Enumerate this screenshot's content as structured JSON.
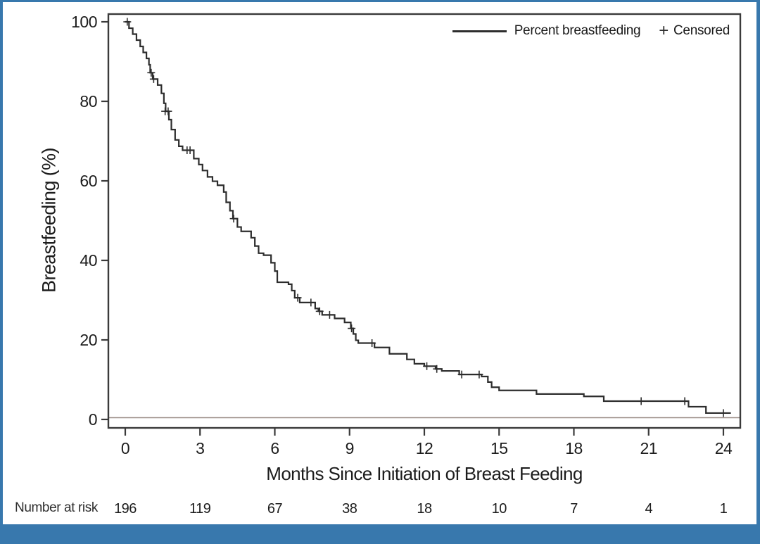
{
  "colors": {
    "accent_blue": "#3878ad",
    "curve": "#2d2d2d",
    "frame": "#3a3a3a",
    "zero_line": "#9b8e88",
    "text": "#1c1c1c"
  },
  "chart_data": {
    "type": "line",
    "subtype": "kaplan-meier-step",
    "title": "",
    "xlabel": "Months Since Initiation of Breast Feeding",
    "ylabel": "Breastfeeding (%)",
    "xlim": [
      0,
      24
    ],
    "ylim": [
      0,
      100
    ],
    "x_ticks": [
      0,
      3,
      6,
      9,
      12,
      15,
      18,
      21,
      24
    ],
    "y_ticks": [
      0,
      20,
      40,
      60,
      80,
      100
    ],
    "grid": false,
    "zero_reference_line": true,
    "legend": {
      "position": "top-right",
      "series_label": "Percent breastfeeding",
      "censored_label": "Censored",
      "censored_marker": "+"
    },
    "series": [
      {
        "name": "Percent breastfeeding",
        "steps": [
          [
            0,
            100
          ],
          [
            0.15,
            98.4
          ],
          [
            0.3,
            96.9
          ],
          [
            0.45,
            95.4
          ],
          [
            0.6,
            93.8
          ],
          [
            0.72,
            92.3
          ],
          [
            0.85,
            90.8
          ],
          [
            0.95,
            89.2
          ],
          [
            1.0,
            87.2
          ],
          [
            1.1,
            85.6
          ],
          [
            1.3,
            84.1
          ],
          [
            1.45,
            82
          ],
          [
            1.55,
            79.5
          ],
          [
            1.62,
            77.5
          ],
          [
            1.75,
            75.4
          ],
          [
            1.85,
            72.9
          ],
          [
            2,
            70.3
          ],
          [
            2.15,
            68.7
          ],
          [
            2.3,
            67.7
          ],
          [
            2.75,
            65.6
          ],
          [
            2.95,
            64.1
          ],
          [
            3.1,
            62.6
          ],
          [
            3.3,
            61
          ],
          [
            3.5,
            59.9
          ],
          [
            3.7,
            58.9
          ],
          [
            3.95,
            57.2
          ],
          [
            4.05,
            54.6
          ],
          [
            4.2,
            52.5
          ],
          [
            4.32,
            50.5
          ],
          [
            4.5,
            48.4
          ],
          [
            4.65,
            47.3
          ],
          [
            5.05,
            45.7
          ],
          [
            5.2,
            43.6
          ],
          [
            5.35,
            41.8
          ],
          [
            5.55,
            41.3
          ],
          [
            5.85,
            39.4
          ],
          [
            6,
            37.3
          ],
          [
            6.1,
            34.5
          ],
          [
            6.55,
            34
          ],
          [
            6.68,
            32.4
          ],
          [
            6.8,
            30.6
          ],
          [
            7,
            29.4
          ],
          [
            7.62,
            27.9
          ],
          [
            7.75,
            27.2
          ],
          [
            7.9,
            26.3
          ],
          [
            8.4,
            25.4
          ],
          [
            8.8,
            24.4
          ],
          [
            9.05,
            22.9
          ],
          [
            9.15,
            21.5
          ],
          [
            9.25,
            19.9
          ],
          [
            9.35,
            19.2
          ],
          [
            10,
            18.1
          ],
          [
            10.6,
            16.5
          ],
          [
            11.3,
            15.1
          ],
          [
            11.6,
            14
          ],
          [
            12,
            13.4
          ],
          [
            12.45,
            12.7
          ],
          [
            12.7,
            12.2
          ],
          [
            13.4,
            11.3
          ],
          [
            14.3,
            10.8
          ],
          [
            14.55,
            9.4
          ],
          [
            14.7,
            8.1
          ],
          [
            15,
            7.3
          ],
          [
            16.5,
            6.4
          ],
          [
            18.4,
            5.8
          ],
          [
            19.2,
            4.6
          ],
          [
            22.6,
            3.2
          ],
          [
            23.3,
            1.6
          ],
          [
            24.3,
            1.6
          ]
        ]
      }
    ],
    "censored_points": [
      [
        0.08,
        100
      ],
      [
        1.04,
        87.2
      ],
      [
        1.14,
        85.6
      ],
      [
        1.6,
        77.5
      ],
      [
        1.72,
        77.5
      ],
      [
        2.48,
        67.7
      ],
      [
        2.6,
        67.7
      ],
      [
        4.35,
        50.5
      ],
      [
        6.92,
        30.6
      ],
      [
        7.45,
        29.4
      ],
      [
        7.8,
        27.2
      ],
      [
        8.2,
        26.3
      ],
      [
        9.08,
        22.9
      ],
      [
        9.9,
        19.2
      ],
      [
        12.1,
        13.4
      ],
      [
        12.5,
        12.7
      ],
      [
        13.5,
        11.3
      ],
      [
        14.2,
        11.3
      ],
      [
        20.7,
        4.6
      ],
      [
        22.45,
        4.6
      ],
      [
        24,
        1.6
      ]
    ],
    "number_at_risk": {
      "label": "Number at risk",
      "times": [
        0,
        3,
        6,
        9,
        12,
        15,
        18,
        21,
        24
      ],
      "values": [
        196,
        119,
        67,
        38,
        18,
        10,
        7,
        4,
        1
      ]
    }
  }
}
